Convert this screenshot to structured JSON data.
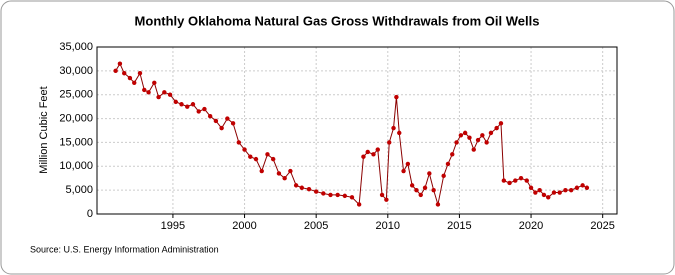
{
  "chart_data": {
    "type": "line",
    "title": "Monthly Oklahoma Natural Gas Gross Withdrawals from Oil Wells",
    "y_label": "Million Cubic Feet",
    "source": "Source: U.S. Energy Information Administration",
    "color": "#c00000",
    "line_color": "#8b0000",
    "grid": true,
    "markers": true,
    "xlim": [
      1989.7,
      2026
    ],
    "xticks": [
      1995,
      2000,
      2005,
      2010,
      2015,
      2020,
      2025
    ],
    "ylim": [
      0,
      35000
    ],
    "yticks": [
      {
        "value": 0,
        "label": "0"
      },
      {
        "value": 5000,
        "label": "5,000"
      },
      {
        "value": 10000,
        "label": "10,000"
      },
      {
        "value": 15000,
        "label": "15,000"
      },
      {
        "value": 20000,
        "label": "20,000"
      },
      {
        "value": 25000,
        "label": "25,000"
      },
      {
        "value": 30000,
        "label": "30,000"
      },
      {
        "value": 35000,
        "label": "35,000"
      }
    ],
    "x": [
      1991.0,
      1991.3,
      1991.6,
      1992.0,
      1992.3,
      1992.7,
      1993.0,
      1993.3,
      1993.7,
      1994.0,
      1994.4,
      1994.8,
      1995.2,
      1995.6,
      1996.0,
      1996.4,
      1996.8,
      1997.2,
      1997.6,
      1998.0,
      1998.4,
      1998.8,
      1999.2,
      1999.6,
      2000.0,
      2000.4,
      2000.8,
      2001.2,
      2001.6,
      2002.0,
      2002.4,
      2002.8,
      2003.2,
      2003.6,
      2004.0,
      2004.5,
      2005.0,
      2005.5,
      2006.0,
      2006.5,
      2007.0,
      2007.5,
      2008.0,
      2008.3,
      2008.6,
      2009.0,
      2009.3,
      2009.6,
      2009.9,
      2010.1,
      2010.4,
      2010.6,
      2010.8,
      2011.1,
      2011.4,
      2011.7,
      2012.0,
      2012.3,
      2012.6,
      2012.9,
      2013.2,
      2013.5,
      2013.9,
      2014.2,
      2014.5,
      2014.8,
      2015.1,
      2015.4,
      2015.7,
      2016.0,
      2016.3,
      2016.6,
      2016.9,
      2017.2,
      2017.6,
      2017.9,
      2018.1,
      2018.5,
      2018.9,
      2019.3,
      2019.7,
      2020.0,
      2020.3,
      2020.6,
      2020.9,
      2021.2,
      2021.6,
      2022.0,
      2022.4,
      2022.8,
      2023.2,
      2023.6,
      2023.9
    ],
    "values": [
      30000,
      31500,
      29500,
      28500,
      27500,
      29500,
      26000,
      25500,
      27500,
      24500,
      25500,
      25000,
      23500,
      23000,
      22500,
      23000,
      21500,
      22000,
      20500,
      19500,
      18000,
      20000,
      19000,
      15000,
      13500,
      12000,
      11500,
      9000,
      12500,
      11500,
      8500,
      7500,
      9000,
      6000,
      5500,
      5200,
      4700,
      4300,
      4000,
      4000,
      3800,
      3500,
      2000,
      12000,
      13000,
      12500,
      13500,
      4000,
      3000,
      15000,
      18000,
      24500,
      17000,
      9000,
      10500,
      6000,
      5000,
      4000,
      5500,
      8500,
      5000,
      2000,
      8000,
      10500,
      12500,
      15000,
      16500,
      17000,
      16000,
      13500,
      15500,
      16500,
      15000,
      17000,
      18000,
      19000,
      7000,
      6500,
      7000,
      7500,
      7000,
      5500,
      4500,
      5000,
      4000,
      3500,
      4500,
      4500,
      5000,
      5000,
      5500,
      6000,
      5500
    ]
  }
}
